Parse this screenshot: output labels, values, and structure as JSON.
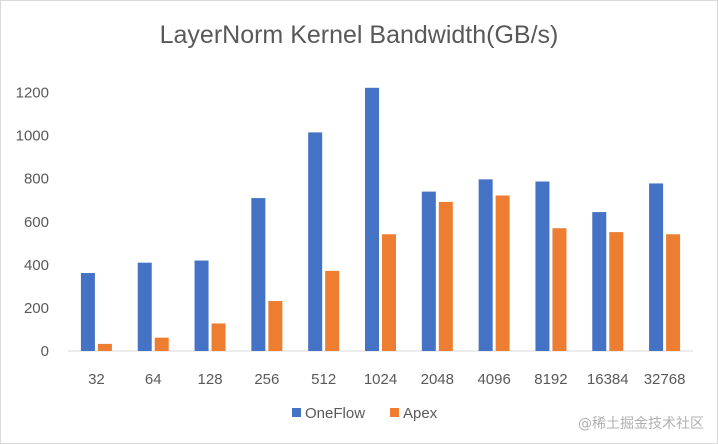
{
  "chart_data": {
    "type": "bar",
    "title": "LayerNorm Kernel Bandwidth(GB/s)",
    "xlabel": "",
    "ylabel": "",
    "categories": [
      "32",
      "64",
      "128",
      "256",
      "512",
      "1024",
      "2048",
      "4096",
      "8192",
      "16384",
      "32768"
    ],
    "series": [
      {
        "name": "OneFlow",
        "color": "#4472C4",
        "values": [
          362,
          410,
          420,
          710,
          1015,
          1222,
          740,
          797,
          787,
          645,
          778
        ]
      },
      {
        "name": "Apex",
        "color": "#ED7D31",
        "values": [
          33,
          62,
          128,
          232,
          372,
          542,
          692,
          722,
          570,
          552,
          542
        ]
      }
    ],
    "yticks": [
      0,
      200,
      400,
      600,
      800,
      1000,
      1200
    ],
    "ylim": [
      0,
      1300
    ],
    "grid": false,
    "legend_position": "bottom"
  },
  "watermark": {
    "text": "@稀土掘金技术社区"
  }
}
